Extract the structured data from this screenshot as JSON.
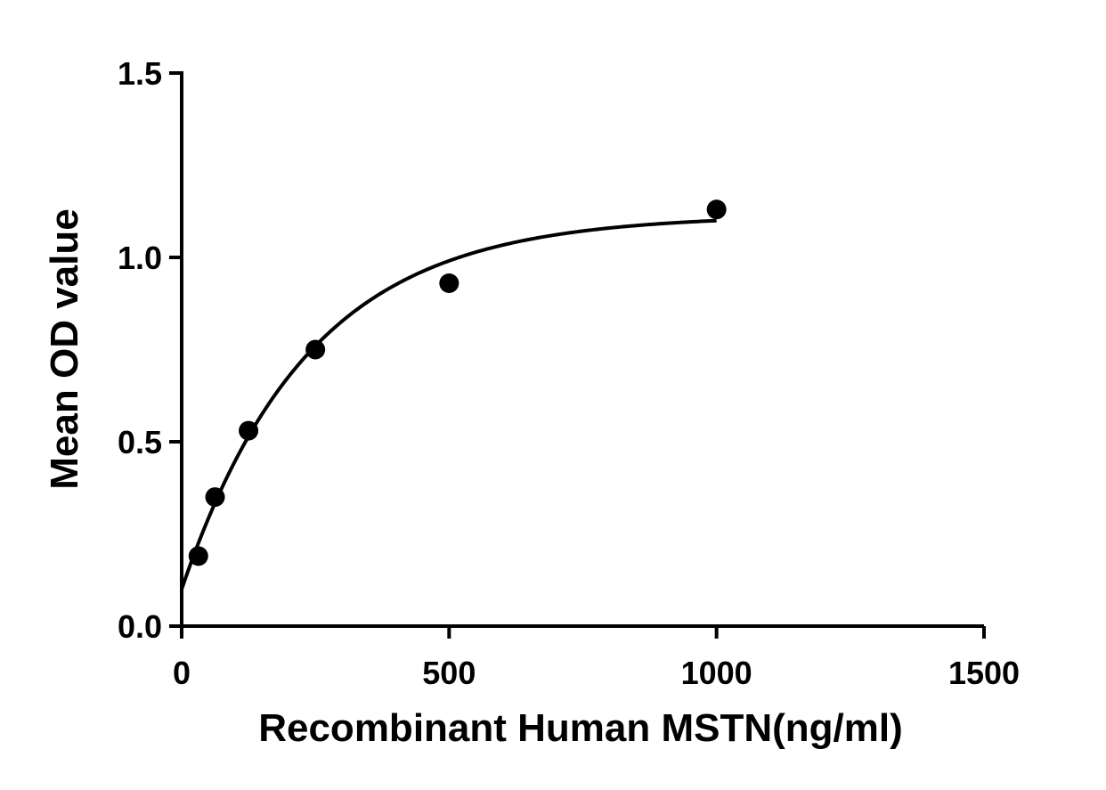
{
  "chart_data": {
    "type": "scatter",
    "title": "",
    "xlabel": "Recombinant Human MSTN(ng/ml)",
    "ylabel": "Mean OD value",
    "xlim": [
      0,
      1500
    ],
    "ylim": [
      0,
      1.5
    ],
    "xticks": [
      0,
      500,
      1000,
      1500
    ],
    "yticks": [
      0.0,
      0.5,
      1.0,
      1.5
    ],
    "xtick_labels": [
      "0",
      "500",
      "1000",
      "1500"
    ],
    "ytick_labels": [
      "0.0",
      "0.5",
      "1.0",
      "1.5"
    ],
    "grid": false,
    "series": [
      {
        "points": [
          {
            "x": 31.25,
            "y": 0.19
          },
          {
            "x": 62.5,
            "y": 0.35
          },
          {
            "x": 125,
            "y": 0.53
          },
          {
            "x": 250,
            "y": 0.75
          },
          {
            "x": 500,
            "y": 0.93
          },
          {
            "x": 1000,
            "y": 1.13
          }
        ],
        "marker": "filled-circle",
        "color": "#000000",
        "fit": {
          "kind": "curve",
          "x_range": [
            0,
            1000
          ],
          "color": "#000000"
        }
      }
    ]
  }
}
